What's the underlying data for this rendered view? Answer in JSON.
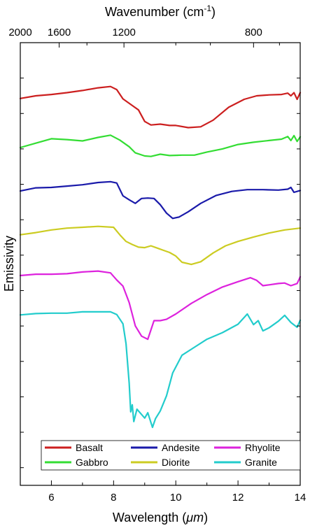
{
  "chart_data": {
    "type": "line",
    "xlabel_pre": "Wavelength (",
    "xlabel_unit": "μm",
    "xlabel_post": ")",
    "ylabel": "Emissivity",
    "top_label_pre": "Wavenumber (cm",
    "top_label_sup": "-1",
    "top_label_post": ")",
    "xlim": [
      5,
      14
    ],
    "x_ticks": [
      6,
      8,
      10,
      12,
      14
    ],
    "x_minor_ticks": [
      5,
      7,
      9,
      11,
      13
    ],
    "top_ticks": [
      2000,
      1600,
      1200,
      800
    ],
    "top_minor_ticks": [
      1400,
      1000,
      900,
      750
    ],
    "ylim": [
      0,
      100
    ],
    "y_ticks": [
      4,
      12,
      20,
      28,
      36,
      44,
      52,
      60,
      68,
      76,
      84,
      92
    ],
    "y_tick_labels_visible": false,
    "legend_position": "bottom",
    "series": [
      {
        "name": "Basalt",
        "color": "#cc1f1f",
        "points": [
          [
            5.0,
            87.4
          ],
          [
            5.5,
            88.0
          ],
          [
            6.0,
            88.3
          ],
          [
            6.5,
            88.7
          ],
          [
            7.0,
            89.2
          ],
          [
            7.5,
            89.8
          ],
          [
            7.9,
            90.1
          ],
          [
            8.1,
            89.4
          ],
          [
            8.3,
            87.3
          ],
          [
            8.6,
            85.8
          ],
          [
            8.8,
            84.8
          ],
          [
            9.0,
            82.2
          ],
          [
            9.2,
            81.4
          ],
          [
            9.5,
            81.6
          ],
          [
            9.8,
            81.3
          ],
          [
            10.0,
            81.3
          ],
          [
            10.4,
            80.8
          ],
          [
            10.8,
            81.0
          ],
          [
            11.2,
            82.5
          ],
          [
            11.7,
            85.4
          ],
          [
            12.2,
            87.2
          ],
          [
            12.6,
            88.0
          ],
          [
            13.0,
            88.2
          ],
          [
            13.4,
            88.3
          ],
          [
            13.6,
            88.6
          ],
          [
            13.7,
            88.0
          ],
          [
            13.8,
            88.7
          ],
          [
            13.9,
            87.2
          ],
          [
            14.0,
            88.7
          ]
        ]
      },
      {
        "name": "Gabbro",
        "color": "#33dd33",
        "points": [
          [
            5.0,
            76.3
          ],
          [
            5.5,
            77.3
          ],
          [
            6.0,
            78.3
          ],
          [
            6.5,
            78.1
          ],
          [
            7.0,
            77.8
          ],
          [
            7.5,
            78.6
          ],
          [
            7.9,
            79.1
          ],
          [
            8.2,
            78.0
          ],
          [
            8.5,
            76.5
          ],
          [
            8.7,
            75.1
          ],
          [
            9.0,
            74.4
          ],
          [
            9.2,
            74.3
          ],
          [
            9.5,
            74.8
          ],
          [
            9.8,
            74.5
          ],
          [
            10.2,
            74.6
          ],
          [
            10.6,
            74.6
          ],
          [
            11.0,
            75.3
          ],
          [
            11.5,
            76.0
          ],
          [
            12.0,
            77.0
          ],
          [
            12.5,
            77.5
          ],
          [
            13.0,
            77.9
          ],
          [
            13.4,
            78.2
          ],
          [
            13.6,
            78.8
          ],
          [
            13.7,
            77.9
          ],
          [
            13.8,
            79.0
          ],
          [
            13.9,
            77.7
          ],
          [
            14.0,
            78.7
          ]
        ]
      },
      {
        "name": "Andesite",
        "color": "#1a1aaa",
        "points": [
          [
            5.0,
            66.5
          ],
          [
            5.5,
            67.2
          ],
          [
            6.0,
            67.3
          ],
          [
            6.5,
            67.6
          ],
          [
            7.0,
            67.9
          ],
          [
            7.5,
            68.4
          ],
          [
            7.9,
            68.6
          ],
          [
            8.1,
            68.3
          ],
          [
            8.3,
            65.4
          ],
          [
            8.5,
            64.5
          ],
          [
            8.7,
            63.7
          ],
          [
            8.9,
            64.8
          ],
          [
            9.1,
            64.9
          ],
          [
            9.3,
            64.8
          ],
          [
            9.5,
            63.4
          ],
          [
            9.7,
            61.5
          ],
          [
            9.9,
            60.3
          ],
          [
            10.1,
            60.6
          ],
          [
            10.4,
            61.8
          ],
          [
            10.8,
            63.7
          ],
          [
            11.3,
            65.5
          ],
          [
            11.8,
            66.4
          ],
          [
            12.3,
            66.8
          ],
          [
            12.8,
            66.8
          ],
          [
            13.3,
            66.7
          ],
          [
            13.6,
            66.9
          ],
          [
            13.7,
            67.3
          ],
          [
            13.8,
            66.2
          ],
          [
            14.0,
            66.6
          ]
        ]
      },
      {
        "name": "Diorite",
        "color": "#cccc22",
        "points": [
          [
            5.0,
            56.6
          ],
          [
            5.5,
            57.1
          ],
          [
            6.0,
            57.7
          ],
          [
            6.5,
            58.1
          ],
          [
            7.0,
            58.3
          ],
          [
            7.5,
            58.5
          ],
          [
            8.0,
            58.3
          ],
          [
            8.2,
            56.6
          ],
          [
            8.4,
            55.1
          ],
          [
            8.6,
            54.4
          ],
          [
            8.8,
            53.8
          ],
          [
            9.0,
            53.7
          ],
          [
            9.2,
            54.1
          ],
          [
            9.4,
            53.6
          ],
          [
            9.6,
            53.1
          ],
          [
            9.8,
            52.6
          ],
          [
            10.0,
            51.8
          ],
          [
            10.2,
            50.4
          ],
          [
            10.5,
            49.9
          ],
          [
            10.8,
            50.5
          ],
          [
            11.2,
            52.5
          ],
          [
            11.6,
            54.1
          ],
          [
            12.0,
            55.1
          ],
          [
            12.5,
            56.1
          ],
          [
            13.0,
            57.0
          ],
          [
            13.5,
            57.7
          ],
          [
            14.0,
            58.1
          ]
        ]
      },
      {
        "name": "Rhyolite",
        "color": "#dd22dd",
        "points": [
          [
            5.0,
            47.4
          ],
          [
            5.5,
            47.7
          ],
          [
            6.0,
            47.7
          ],
          [
            6.5,
            47.8
          ],
          [
            7.0,
            48.2
          ],
          [
            7.5,
            48.4
          ],
          [
            7.9,
            48.0
          ],
          [
            8.1,
            46.4
          ],
          [
            8.3,
            45.0
          ],
          [
            8.5,
            41.3
          ],
          [
            8.7,
            36.0
          ],
          [
            8.9,
            33.7
          ],
          [
            9.1,
            33.0
          ],
          [
            9.3,
            37.2
          ],
          [
            9.5,
            37.2
          ],
          [
            9.7,
            37.5
          ],
          [
            10.0,
            38.7
          ],
          [
            10.5,
            41.1
          ],
          [
            11.0,
            43.1
          ],
          [
            11.5,
            44.8
          ],
          [
            12.0,
            46.0
          ],
          [
            12.4,
            46.9
          ],
          [
            12.6,
            46.3
          ],
          [
            12.8,
            45.1
          ],
          [
            13.0,
            45.3
          ],
          [
            13.3,
            45.6
          ],
          [
            13.5,
            45.7
          ],
          [
            13.7,
            45.1
          ],
          [
            13.9,
            45.6
          ],
          [
            14.0,
            47.1
          ]
        ]
      },
      {
        "name": "Granite",
        "color": "#22cccc",
        "points": [
          [
            5.0,
            38.5
          ],
          [
            5.5,
            38.8
          ],
          [
            6.0,
            38.9
          ],
          [
            6.5,
            38.9
          ],
          [
            7.0,
            39.2
          ],
          [
            7.5,
            39.2
          ],
          [
            7.9,
            39.2
          ],
          [
            8.1,
            38.6
          ],
          [
            8.3,
            36.5
          ],
          [
            8.4,
            32.0
          ],
          [
            8.5,
            23.1
          ],
          [
            8.55,
            16.6
          ],
          [
            8.6,
            18.2
          ],
          [
            8.65,
            14.4
          ],
          [
            8.75,
            17.2
          ],
          [
            8.9,
            16.0
          ],
          [
            9.0,
            15.2
          ],
          [
            9.1,
            16.4
          ],
          [
            9.25,
            13.1
          ],
          [
            9.35,
            15.1
          ],
          [
            9.5,
            16.8
          ],
          [
            9.7,
            20.2
          ],
          [
            9.9,
            25.4
          ],
          [
            10.2,
            29.4
          ],
          [
            10.6,
            31.2
          ],
          [
            11.0,
            33.0
          ],
          [
            11.5,
            34.5
          ],
          [
            12.0,
            36.4
          ],
          [
            12.3,
            38.7
          ],
          [
            12.5,
            36.3
          ],
          [
            12.65,
            37.2
          ],
          [
            12.8,
            34.9
          ],
          [
            13.0,
            35.6
          ],
          [
            13.3,
            37.1
          ],
          [
            13.5,
            38.4
          ],
          [
            13.7,
            36.8
          ],
          [
            13.9,
            35.7
          ],
          [
            14.0,
            37.3
          ]
        ]
      }
    ]
  }
}
